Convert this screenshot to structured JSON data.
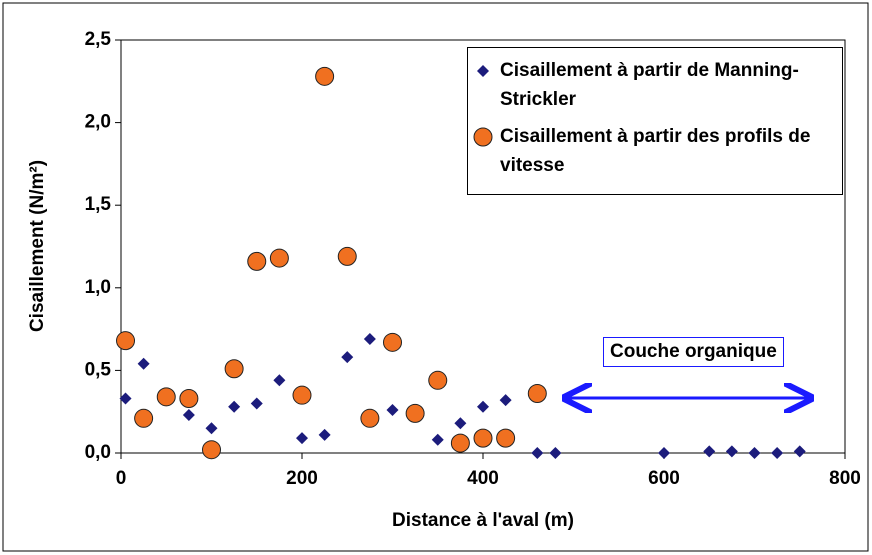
{
  "chart_data": {
    "type": "scatter",
    "xlabel": "Distance à l'aval (m)",
    "ylabel": "Cisaillement (N/m²)",
    "annotation": "Couche organique",
    "xlim": [
      0,
      800
    ],
    "xticks": [
      0,
      200,
      400,
      600,
      800
    ],
    "ylim": [
      0,
      2.5
    ],
    "yticks": [
      {
        "value": 0,
        "label": "0,0"
      },
      {
        "value": 0.5,
        "label": "0,5"
      },
      {
        "value": 1,
        "label": "1,0"
      },
      {
        "value": 1.5,
        "label": "1,5"
      },
      {
        "value": 2,
        "label": "2,0"
      },
      {
        "value": 2.5,
        "label": "2,5"
      }
    ],
    "legend": "upper right",
    "series": [
      {
        "name": "Cisaillement à partir de Manning-Strickler",
        "color": "#1c1c7c",
        "marker": "diamond",
        "x": [
          5,
          25,
          75,
          100,
          125,
          150,
          175,
          200,
          225,
          250,
          275,
          300,
          350,
          375,
          400,
          425,
          460,
          480,
          600,
          650,
          675,
          700,
          725,
          750
        ],
        "values": [
          0.33,
          0.54,
          0.23,
          0.15,
          0.28,
          0.3,
          0.44,
          0.09,
          0.11,
          0.58,
          0.69,
          0.26,
          0.08,
          0.18,
          0.28,
          0.32,
          0,
          0,
          0,
          0.01,
          0.01,
          0,
          0,
          0.01
        ]
      },
      {
        "name": "Cisaillement à partir des profils de vitesse",
        "color": "#f07020",
        "marker": "circle",
        "x": [
          5,
          25,
          50,
          75,
          100,
          125,
          150,
          175,
          200,
          225,
          250,
          275,
          300,
          325,
          350,
          375,
          400,
          425,
          460
        ],
        "values": [
          0.68,
          0.21,
          0.34,
          0.33,
          0.02,
          0.51,
          1.16,
          1.18,
          0.35,
          2.28,
          1.19,
          0.21,
          0.67,
          0.24,
          0.44,
          0.06,
          0.09,
          0.09,
          0.36
        ]
      }
    ]
  }
}
